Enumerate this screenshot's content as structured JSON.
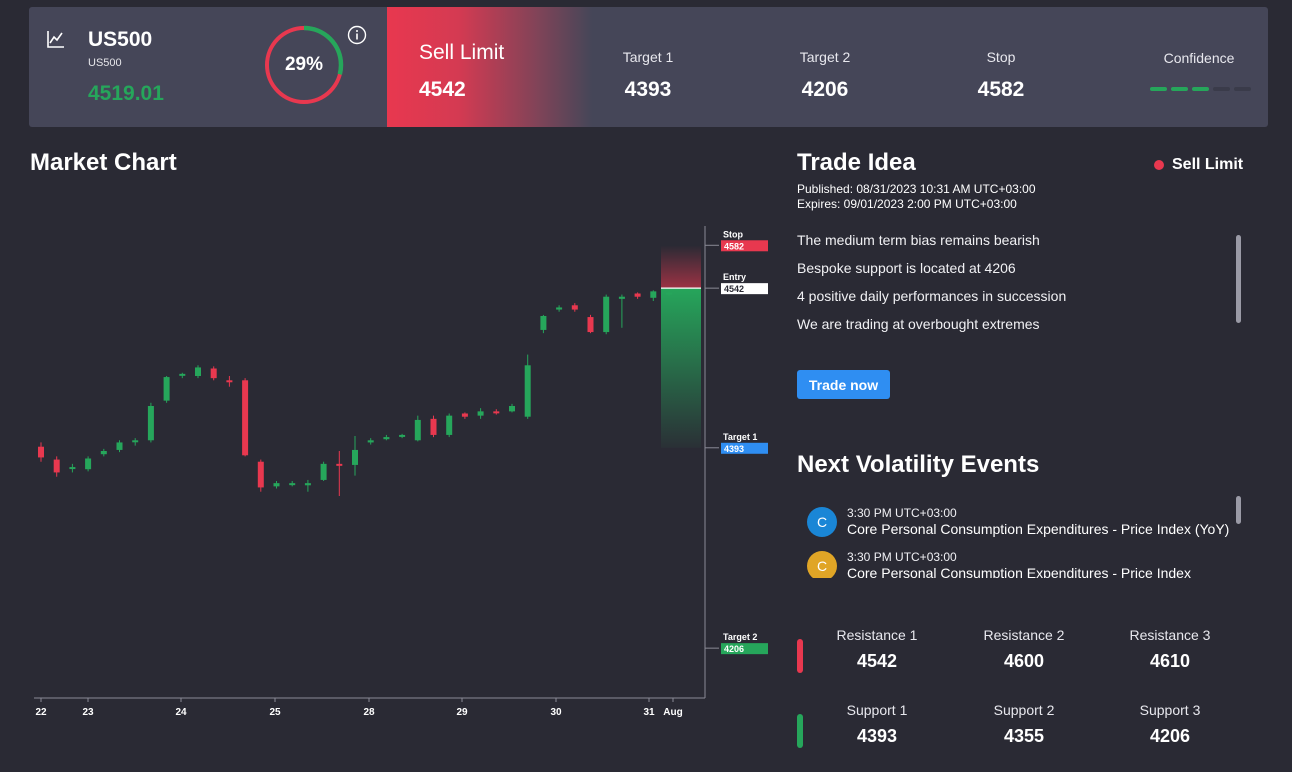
{
  "header": {
    "symbol": "US500",
    "symbol_sub": "US500",
    "price": "4519.01",
    "gauge": {
      "label": "29%",
      "fraction": 0.29
    },
    "order_type": "Sell Limit",
    "entry": "4542",
    "stats": [
      {
        "label": "Target 1",
        "value": "4393"
      },
      {
        "label": "Target 2",
        "value": "4206"
      },
      {
        "label": "Stop",
        "value": "4582"
      }
    ],
    "confidence_label": "Confidence",
    "confidence_level": 3,
    "confidence_total": 5
  },
  "market_chart": {
    "title": "Market Chart"
  },
  "trade_idea": {
    "title": "Trade Idea",
    "badge": "Sell Limit",
    "published": "Published:  08/31/2023 10:31 AM UTC+03:00",
    "expires": "Expires:  09/01/2023 2:00 PM UTC+03:00",
    "bullets": [
      "The medium term bias remains bearish",
      "Bespoke support is located at 4206",
      "4 positive daily performances in succession",
      "We are trading at overbought extremes"
    ],
    "button": "Trade now"
  },
  "events": {
    "title": "Next Volatility Events",
    "items": [
      {
        "initial": "C",
        "time": "3:30 PM UTC+03:00",
        "name": "Core Personal Consumption Expenditures - Price Index (YoY)",
        "color": "#1a86d6"
      },
      {
        "initial": "C",
        "time": "3:30 PM UTC+03:00",
        "name": "Core Personal Consumption Expenditures - Price Index",
        "color": "#e0a526"
      }
    ]
  },
  "levels": {
    "resistance": [
      {
        "label": "Resistance 1",
        "value": "4542"
      },
      {
        "label": "Resistance 2",
        "value": "4600"
      },
      {
        "label": "Resistance 3",
        "value": "4610"
      }
    ],
    "support": [
      {
        "label": "Support 1",
        "value": "4393"
      },
      {
        "label": "Support 2",
        "value": "4355"
      },
      {
        "label": "Support 3",
        "value": "4206"
      }
    ]
  },
  "colors": {
    "up": "#26a65b",
    "down": "#e8384f",
    "accent": "#2f8ef2"
  },
  "chart_data": {
    "type": "candlestick",
    "x_ticks": [
      "22",
      "23",
      "24",
      "25",
      "28",
      "29",
      "30",
      "31",
      "Aug"
    ],
    "y_range": [
      4180,
      4600
    ],
    "levels": [
      {
        "label": "Stop",
        "value": 4582,
        "color": "#e8384f",
        "text_color": "#ffffff"
      },
      {
        "label": "Entry",
        "value": 4542,
        "color": "#ffffff",
        "text_color": "#2a2a34"
      },
      {
        "label": "Target 1",
        "value": 4393,
        "color": "#2f8ef2",
        "text_color": "#ffffff"
      },
      {
        "label": "Target 2",
        "value": 4206,
        "color": "#26a65b",
        "text_color": "#ffffff"
      }
    ],
    "candles": [
      [
        4394,
        4384,
        4398,
        4380
      ],
      [
        4382,
        4370,
        4385,
        4366
      ],
      [
        4374,
        4375,
        4378,
        4370
      ],
      [
        4373,
        4383,
        4385,
        4371
      ],
      [
        4387,
        4390,
        4392,
        4385
      ],
      [
        4391,
        4398,
        4400,
        4389
      ],
      [
        4399,
        4400,
        4402,
        4395
      ],
      [
        4400,
        4432,
        4435,
        4398
      ],
      [
        4437,
        4459,
        4460,
        4435
      ],
      [
        4461,
        4462,
        4463,
        4458
      ],
      [
        4460,
        4468,
        4470,
        4458
      ],
      [
        4467,
        4458,
        4469,
        4456
      ],
      [
        4456,
        4455,
        4460,
        4450
      ],
      [
        4456,
        4386,
        4458,
        4385
      ],
      [
        4380,
        4356,
        4382,
        4352
      ],
      [
        4357,
        4360,
        4362,
        4355
      ],
      [
        4360,
        4360,
        4362,
        4357
      ],
      [
        4358,
        4360,
        4363,
        4352
      ],
      [
        4363,
        4378,
        4380,
        4362
      ],
      [
        4378,
        4377,
        4390,
        4348
      ],
      [
        4377,
        4391,
        4404,
        4367
      ],
      [
        4398,
        4400,
        4402,
        4396
      ],
      [
        4401,
        4403,
        4405,
        4400
      ],
      [
        4404,
        4405,
        4406,
        4402
      ],
      [
        4400,
        4419,
        4423,
        4399
      ],
      [
        4420,
        4405,
        4423,
        4403
      ],
      [
        4405,
        4423,
        4425,
        4403
      ],
      [
        4425,
        4422,
        4426,
        4420
      ],
      [
        4423,
        4427,
        4430,
        4420
      ],
      [
        4427,
        4426,
        4429,
        4424
      ],
      [
        4427,
        4432,
        4434,
        4426
      ],
      [
        4422,
        4470,
        4480,
        4420
      ],
      [
        4503,
        4516,
        4517,
        4500
      ],
      [
        4522,
        4524,
        4526,
        4520
      ],
      [
        4526,
        4522,
        4528,
        4520
      ],
      [
        4515,
        4501,
        4517,
        4500
      ],
      [
        4501,
        4534,
        4536,
        4499
      ],
      [
        4532,
        4534,
        4536,
        4505
      ],
      [
        4537,
        4534,
        4538,
        4532
      ],
      [
        4533,
        4539,
        4540,
        4530
      ],
      [
        4536,
        4538,
        4539,
        4535
      ]
    ]
  }
}
